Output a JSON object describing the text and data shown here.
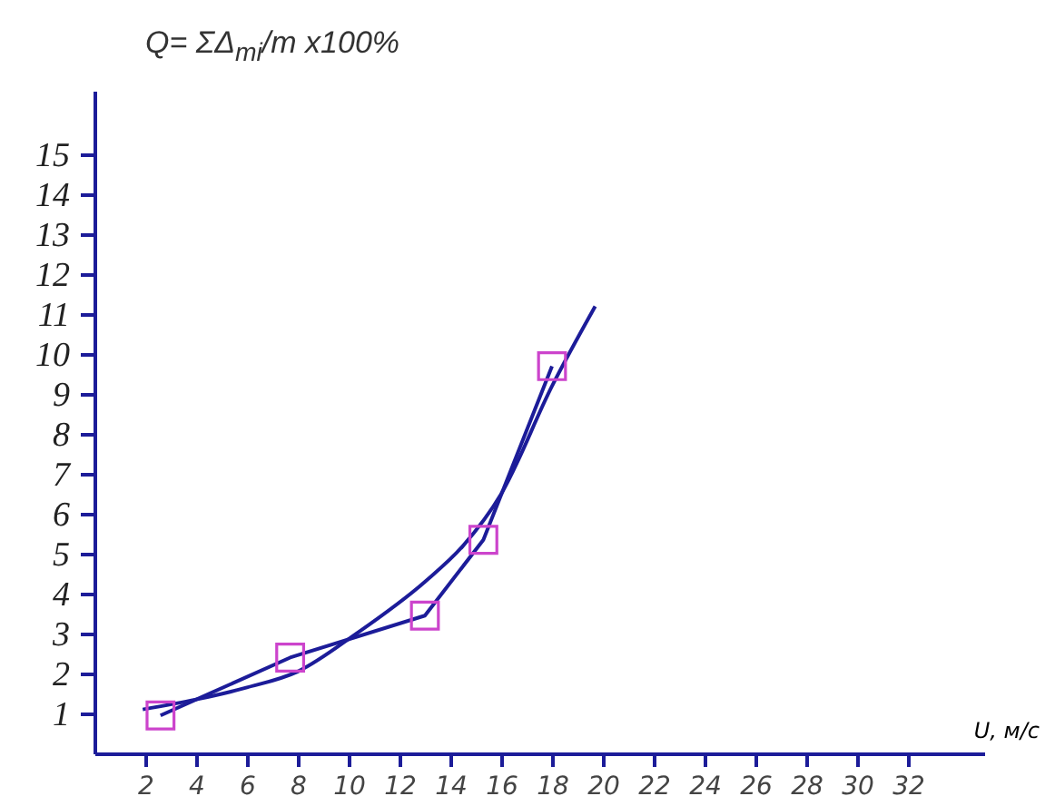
{
  "chart_data": {
    "type": "line",
    "xlabel": "U, м/с",
    "annotations": [
      "Q= ΣΔ$_{mi}$/m x100%"
    ],
    "x": [
      2.6,
      7.7,
      13.0,
      15.3,
      18.0
    ],
    "series": [
      {
        "color": "#1c1c99",
        "values": [
          0.95,
          2.4,
          3.45,
          5.35,
          9.7
        ]
      },
      {
        "color": "#1c1c99",
        "x": [
          1.9,
          4,
          6,
          8,
          10.3,
          13,
          14.5,
          16,
          18,
          19.7
        ],
        "values": [
          1.1,
          1.35,
          1.65,
          2.05,
          3.0,
          4.3,
          5.2,
          6.5,
          9.2,
          11.2
        ]
      },
      {
        "type": "scatter",
        "marker": "square",
        "color": "#cc44cc",
        "values": [
          0.95,
          2.4,
          3.45,
          5.35,
          9.7
        ]
      }
    ],
    "xlim": [
      0,
      35
    ],
    "xticks": [
      2,
      4,
      6,
      8,
      10,
      12,
      14,
      16,
      18,
      20,
      22,
      24,
      26,
      28,
      30,
      32
    ],
    "ylim": [
      0,
      16.6
    ],
    "yticks": [
      1,
      2,
      3,
      4,
      5,
      6,
      7,
      8,
      9,
      10,
      11,
      12,
      13,
      14,
      15
    ],
    "grid": false
  }
}
